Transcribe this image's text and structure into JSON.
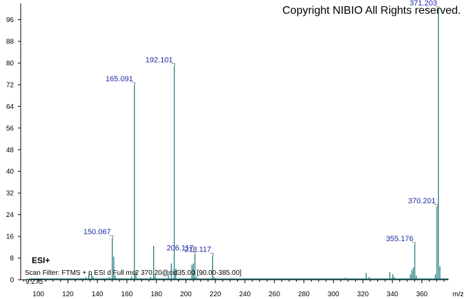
{
  "copyright": "Copyright NIBIO All Rights reserved.",
  "ion_mode": "ESI+",
  "scan_filter": "Scan Filter: FTMS + p ESI d Full ms2 370.20@cid35.00 [90.00-385.00]",
  "retention_value": "9.275",
  "colors": {
    "peak": "#1a7a7a",
    "label": "#1f2aa8",
    "axis": "#000000"
  },
  "chart_data": {
    "type": "bar",
    "title": "",
    "xlabel": "m/z",
    "ylabel": "",
    "xlim": [
      88,
      378
    ],
    "ylim": [
      0,
      102
    ],
    "x_ticks": [
      100,
      120,
      140,
      160,
      180,
      200,
      220,
      240,
      260,
      280,
      300,
      320,
      340,
      360
    ],
    "y_ticks": [
      0,
      8,
      16,
      24,
      32,
      40,
      48,
      56,
      64,
      72,
      80,
      88,
      96
    ],
    "peaks": [
      {
        "x": 132.1,
        "y": 1.0
      },
      {
        "x": 134.1,
        "y": 1.5
      },
      {
        "x": 136.1,
        "y": 2.0
      },
      {
        "x": 137.1,
        "y": 1.2
      },
      {
        "x": 148.1,
        "y": 1.0
      },
      {
        "x": 150.067,
        "y": 15.5
      },
      {
        "x": 151.1,
        "y": 8.5
      },
      {
        "x": 152.1,
        "y": 1.5
      },
      {
        "x": 163.1,
        "y": 1.2
      },
      {
        "x": 165.091,
        "y": 72.0
      },
      {
        "x": 166.1,
        "y": 3.0
      },
      {
        "x": 176.1,
        "y": 1.0
      },
      {
        "x": 178.1,
        "y": 12.5
      },
      {
        "x": 179.1,
        "y": 1.5
      },
      {
        "x": 188.1,
        "y": 2.0
      },
      {
        "x": 190.1,
        "y": 6.0
      },
      {
        "x": 192.101,
        "y": 79.0
      },
      {
        "x": 193.1,
        "y": 4.0
      },
      {
        "x": 204.1,
        "y": 5.5
      },
      {
        "x": 205.1,
        "y": 6.0
      },
      {
        "x": 206.117,
        "y": 9.5
      },
      {
        "x": 207.1,
        "y": 1.0
      },
      {
        "x": 218.117,
        "y": 9.0
      },
      {
        "x": 219.1,
        "y": 1.0
      },
      {
        "x": 308.2,
        "y": 0.8
      },
      {
        "x": 322.2,
        "y": 2.5
      },
      {
        "x": 324.2,
        "y": 1.0
      },
      {
        "x": 338.2,
        "y": 2.8
      },
      {
        "x": 340.2,
        "y": 2.0
      },
      {
        "x": 341.2,
        "y": 1.0
      },
      {
        "x": 352.2,
        "y": 2.0
      },
      {
        "x": 353.2,
        "y": 3.5
      },
      {
        "x": 354.2,
        "y": 4.5
      },
      {
        "x": 355.176,
        "y": 13.0
      },
      {
        "x": 356.2,
        "y": 1.5
      },
      {
        "x": 369.2,
        "y": 2.0
      },
      {
        "x": 370.201,
        "y": 27.0
      },
      {
        "x": 371.203,
        "y": 100.0
      },
      {
        "x": 372.2,
        "y": 5.0
      }
    ],
    "labels": [
      {
        "text": "150.067",
        "x": 150.067,
        "y": 15.5
      },
      {
        "text": "165.091",
        "x": 165.091,
        "y": 72.0
      },
      {
        "text": "192.101",
        "x": 192.101,
        "y": 79.0
      },
      {
        "text": "206.117",
        "x": 206.117,
        "y": 9.5
      },
      {
        "text": "218.117",
        "x": 218.117,
        "y": 9.0
      },
      {
        "text": "355.176",
        "x": 355.176,
        "y": 13.0
      },
      {
        "text": "370.201",
        "x": 370.201,
        "y": 27.0
      },
      {
        "text": "371.203",
        "x": 371.203,
        "y": 100.0
      }
    ]
  }
}
